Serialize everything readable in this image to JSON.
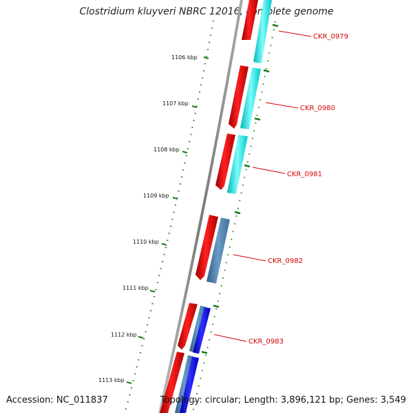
{
  "title": "Clostridium kluyveri NBRC 12016, complete genome",
  "footer": {
    "accession": "Accession: NC_011837",
    "topology": "Topology: circular; Length: 3,896,121 bp; Genes: 3,549"
  },
  "ruler": {
    "unit": "kbp",
    "ticks": [
      {
        "kbp": 1106,
        "label": "1106 kbp"
      },
      {
        "kbp": 1107,
        "label": "1107 kbp"
      },
      {
        "kbp": 1108,
        "label": "1108 kbp"
      },
      {
        "kbp": 1109,
        "label": "1109 kbp"
      },
      {
        "kbp": 1110,
        "label": "1110 kbp"
      },
      {
        "kbp": 1111,
        "label": "1111 kbp"
      },
      {
        "kbp": 1112,
        "label": "1112 kbp"
      },
      {
        "kbp": 1113,
        "label": "1113 kbp"
      }
    ]
  },
  "genes": [
    {
      "label": "CKR_0979"
    },
    {
      "label": "CKR_0980"
    },
    {
      "label": "CKR_0981"
    },
    {
      "label": "CKR_0982"
    },
    {
      "label": "CKR_0983"
    }
  ],
  "colors": {
    "backbone": "#888888",
    "cds": "#e00000",
    "feature_cyan": "#00e5e5",
    "feature_steel": "#4f83b0",
    "feature_blue": "#0000e0",
    "tick": "#1a7a1a",
    "label": "#d40000"
  }
}
